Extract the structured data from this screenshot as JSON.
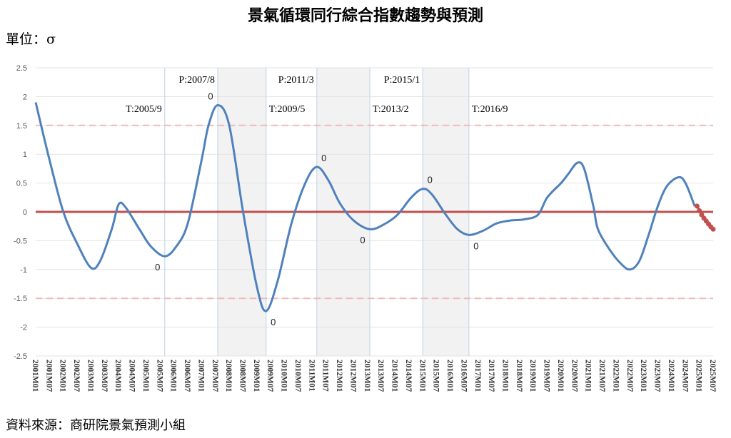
{
  "title": "景氣循環同行綜合指數趨勢與預測",
  "unit_label": "單位：σ",
  "source": "資料來源：商研院景氣預測小組",
  "chart_data": {
    "type": "line",
    "title": "景氣循環同行綜合指數趨勢與預測",
    "ylim": [
      -2.5,
      2.5
    ],
    "yticks": [
      "2.5",
      "2",
      "1.5",
      "1",
      "0.5",
      "0",
      "-0.5",
      "-1",
      "-1.5",
      "-2",
      "-2.5"
    ],
    "xlim": [
      "2001M01",
      "2025M07"
    ],
    "xtick_step_months": 6,
    "grid": true,
    "legend": "none",
    "colors": {
      "series": "#4f81bd",
      "forecast": "#c0504d",
      "zero_line": "#c0504d",
      "threshold": "#f2b8b8",
      "shade": "#f2f2f2",
      "cycle_line": "#c6d9ec"
    },
    "reference_lines": [
      {
        "y": 0,
        "style": "solid"
      },
      {
        "y": 1.5,
        "style": "dashed"
      },
      {
        "y": -1.5,
        "style": "dashed"
      }
    ],
    "cycle_markers": [
      {
        "date": "2005/9",
        "label": "T:2005/9",
        "row": 2
      },
      {
        "date": "2007/8",
        "label": "P:2007/8",
        "row": 1
      },
      {
        "date": "2009/5",
        "label": "T:2009/5",
        "row": 2
      },
      {
        "date": "2011/3",
        "label": "P:2011/3",
        "row": 1
      },
      {
        "date": "2013/2",
        "label": "T:2013/2",
        "row": 2
      },
      {
        "date": "2015/1",
        "label": "P:2015/1",
        "row": 1
      },
      {
        "date": "2016/9",
        "label": "T:2016/9",
        "row": 2
      }
    ],
    "shaded_periods": [
      [
        "2007/8",
        "2009/5"
      ],
      [
        "2011/3",
        "2013/2"
      ],
      [
        "2015/1",
        "2016/9"
      ]
    ],
    "turning_point_labels": [
      {
        "date": "2005/9",
        "value": -0.77,
        "label": "0",
        "pos": "below-left"
      },
      {
        "date": "2007/8",
        "value": 1.85,
        "label": "0",
        "pos": "above-left"
      },
      {
        "date": "2009/5",
        "value": -1.72,
        "label": "0",
        "pos": "below-right"
      },
      {
        "date": "2011/3",
        "value": 0.78,
        "label": "0",
        "pos": "above-right"
      },
      {
        "date": "2013/2",
        "value": -0.3,
        "label": "0",
        "pos": "below-left"
      },
      {
        "date": "2015/1",
        "value": 0.4,
        "label": "0",
        "pos": "above-right"
      },
      {
        "date": "2016/9",
        "value": -0.4,
        "label": "0",
        "pos": "below-right"
      }
    ],
    "series": [
      {
        "type": "actual",
        "points": [
          [
            "2001/1",
            1.9
          ],
          [
            "2001/7",
            0.9
          ],
          [
            "2002/1",
            0.0
          ],
          [
            "2002/7",
            -0.55
          ],
          [
            "2003/1",
            -0.97
          ],
          [
            "2003/5",
            -0.85
          ],
          [
            "2003/10",
            -0.3
          ],
          [
            "2004/1",
            0.13
          ],
          [
            "2004/4",
            0.08
          ],
          [
            "2004/10",
            -0.3
          ],
          [
            "2005/3",
            -0.6
          ],
          [
            "2005/9",
            -0.77
          ],
          [
            "2006/2",
            -0.6
          ],
          [
            "2006/7",
            -0.2
          ],
          [
            "2007/1",
            0.9
          ],
          [
            "2007/4",
            1.5
          ],
          [
            "2007/8",
            1.85
          ],
          [
            "2008/1",
            1.5
          ],
          [
            "2008/7",
            0.0
          ],
          [
            "2009/1",
            -1.3
          ],
          [
            "2009/5",
            -1.72
          ],
          [
            "2009/10",
            -1.2
          ],
          [
            "2010/4",
            -0.2
          ],
          [
            "2010/10",
            0.5
          ],
          [
            "2011/3",
            0.78
          ],
          [
            "2011/8",
            0.55
          ],
          [
            "2012/1",
            0.15
          ],
          [
            "2012/7",
            -0.15
          ],
          [
            "2013/2",
            -0.3
          ],
          [
            "2013/8",
            -0.22
          ],
          [
            "2014/2",
            -0.05
          ],
          [
            "2014/8",
            0.25
          ],
          [
            "2015/1",
            0.4
          ],
          [
            "2015/5",
            0.3
          ],
          [
            "2015/11",
            -0.05
          ],
          [
            "2016/4",
            -0.3
          ],
          [
            "2016/9",
            -0.4
          ],
          [
            "2017/3",
            -0.33
          ],
          [
            "2017/9",
            -0.2
          ],
          [
            "2018/3",
            -0.15
          ],
          [
            "2018/9",
            -0.13
          ],
          [
            "2019/3",
            -0.05
          ],
          [
            "2019/7",
            0.25
          ],
          [
            "2020/1",
            0.5
          ],
          [
            "2020/4",
            0.65
          ],
          [
            "2020/8",
            0.85
          ],
          [
            "2020/11",
            0.75
          ],
          [
            "2021/3",
            0.1
          ],
          [
            "2021/5",
            -0.3
          ],
          [
            "2021/10",
            -0.65
          ],
          [
            "2022/3",
            -0.9
          ],
          [
            "2022/7",
            -1.0
          ],
          [
            "2022/11",
            -0.85
          ],
          [
            "2023/3",
            -0.4
          ],
          [
            "2023/7",
            0.1
          ],
          [
            "2023/11",
            0.45
          ],
          [
            "2024/4",
            0.6
          ],
          [
            "2024/7",
            0.5
          ],
          [
            "2024/11",
            0.1
          ]
        ]
      },
      {
        "type": "forecast",
        "points": [
          [
            "2024/12",
            0.1
          ],
          [
            "2025/1",
            0.02
          ],
          [
            "2025/2",
            -0.05
          ],
          [
            "2025/3",
            -0.11
          ],
          [
            "2025/4",
            -0.16
          ],
          [
            "2025/5",
            -0.21
          ],
          [
            "2025/6",
            -0.26
          ],
          [
            "2025/7",
            -0.3
          ]
        ]
      }
    ]
  }
}
